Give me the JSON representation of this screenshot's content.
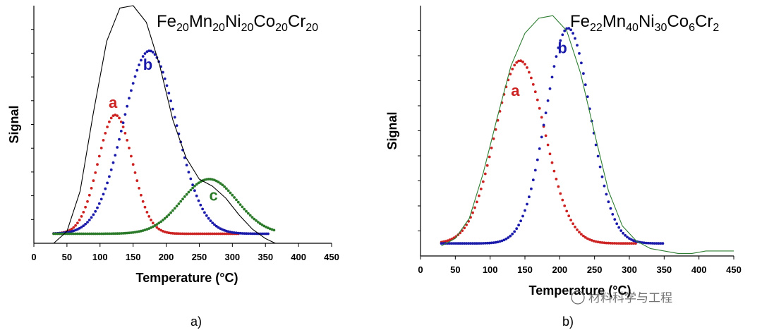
{
  "chart_data": [
    {
      "type": "line",
      "panel_label": "a)",
      "title_parts": [
        {
          "t": "Fe",
          "sub": false
        },
        {
          "t": "20",
          "sub": true
        },
        {
          "t": "Mn",
          "sub": false
        },
        {
          "t": "20",
          "sub": true
        },
        {
          "t": "Ni",
          "sub": false
        },
        {
          "t": "20",
          "sub": true
        },
        {
          "t": "Co",
          "sub": false
        },
        {
          "t": "20",
          "sub": true
        },
        {
          "t": "Cr",
          "sub": false
        },
        {
          "t": "20",
          "sub": true
        }
      ],
      "xlabel": "Temperature (°C)",
      "ylabel": "Signal",
      "xlim": [
        0,
        450
      ],
      "ylim": [
        0,
        1.0
      ],
      "xticks": [
        0,
        50,
        100,
        150,
        200,
        250,
        300,
        350,
        400,
        450
      ],
      "y_minor_ticks": 9,
      "baseline": 0.04,
      "series": [
        {
          "name": "a",
          "style": "dotted",
          "color": "#cc2222",
          "x_range": [
            30,
            310
          ],
          "center": 123,
          "sigma": 26,
          "amp": 0.5,
          "label_at": [
            113,
            0.57
          ]
        },
        {
          "name": "b",
          "style": "dotted",
          "color": "#1a1aaa",
          "x_range": [
            30,
            355
          ],
          "center": 175,
          "sigma": 40,
          "amp": 0.77,
          "label_at": [
            165,
            0.73
          ]
        },
        {
          "name": "c",
          "style": "dotted",
          "color": "#2a7a2a",
          "x_range": [
            30,
            365
          ],
          "center": 265,
          "sigma": 42,
          "amp": 0.23,
          "label_at": [
            265,
            0.18
          ]
        },
        {
          "name": "envelope",
          "style": "line",
          "color": "#000000",
          "x": [
            30,
            50,
            70,
            90,
            110,
            130,
            150,
            170,
            190,
            210,
            230,
            250,
            270,
            290,
            310,
            330,
            350,
            365
          ],
          "y": [
            0.0,
            0.05,
            0.22,
            0.55,
            0.85,
            0.99,
            1.0,
            0.93,
            0.75,
            0.52,
            0.36,
            0.27,
            0.24,
            0.19,
            0.12,
            0.06,
            0.02,
            0.0
          ]
        }
      ]
    },
    {
      "type": "line",
      "panel_label": "b)",
      "title_parts": [
        {
          "t": "Fe",
          "sub": false
        },
        {
          "t": "22",
          "sub": true
        },
        {
          "t": "Mn",
          "sub": false
        },
        {
          "t": "40",
          "sub": true
        },
        {
          "t": "Ni",
          "sub": false
        },
        {
          "t": "30",
          "sub": true
        },
        {
          "t": "Co",
          "sub": false
        },
        {
          "t": "6",
          "sub": true
        },
        {
          "t": "Cr",
          "sub": false
        },
        {
          "t": "2",
          "sub": true
        }
      ],
      "xlabel": "Temperature (°C)",
      "ylabel": "Signal",
      "xlim": [
        0,
        450
      ],
      "ylim": [
        0,
        1.0
      ],
      "xticks": [
        0,
        50,
        100,
        150,
        200,
        250,
        300,
        350,
        400,
        450
      ],
      "y_minor_ticks": 9,
      "baseline": 0.05,
      "series": [
        {
          "name": "a",
          "style": "dotted",
          "color": "#cc2222",
          "x_range": [
            30,
            310
          ],
          "center": 143,
          "sigma": 36,
          "amp": 0.73,
          "label_at": [
            130,
            0.64
          ]
        },
        {
          "name": "b",
          "style": "dotted",
          "color": "#1a1aaa",
          "x_range": [
            30,
            350
          ],
          "center": 212,
          "sigma": 32,
          "amp": 0.86,
          "label_at": [
            197,
            0.81
          ]
        },
        {
          "name": "envelope",
          "style": "line",
          "color": "#2e7d32",
          "x": [
            30,
            50,
            70,
            90,
            110,
            130,
            150,
            170,
            190,
            210,
            230,
            250,
            270,
            290,
            310,
            330,
            350,
            370,
            390,
            410,
            450
          ],
          "y": [
            0.04,
            0.07,
            0.15,
            0.33,
            0.55,
            0.76,
            0.89,
            0.95,
            0.96,
            0.9,
            0.73,
            0.49,
            0.26,
            0.12,
            0.06,
            0.03,
            0.02,
            0.01,
            0.01,
            0.02,
            0.02
          ]
        }
      ]
    }
  ],
  "watermark": "材料科学与工程"
}
